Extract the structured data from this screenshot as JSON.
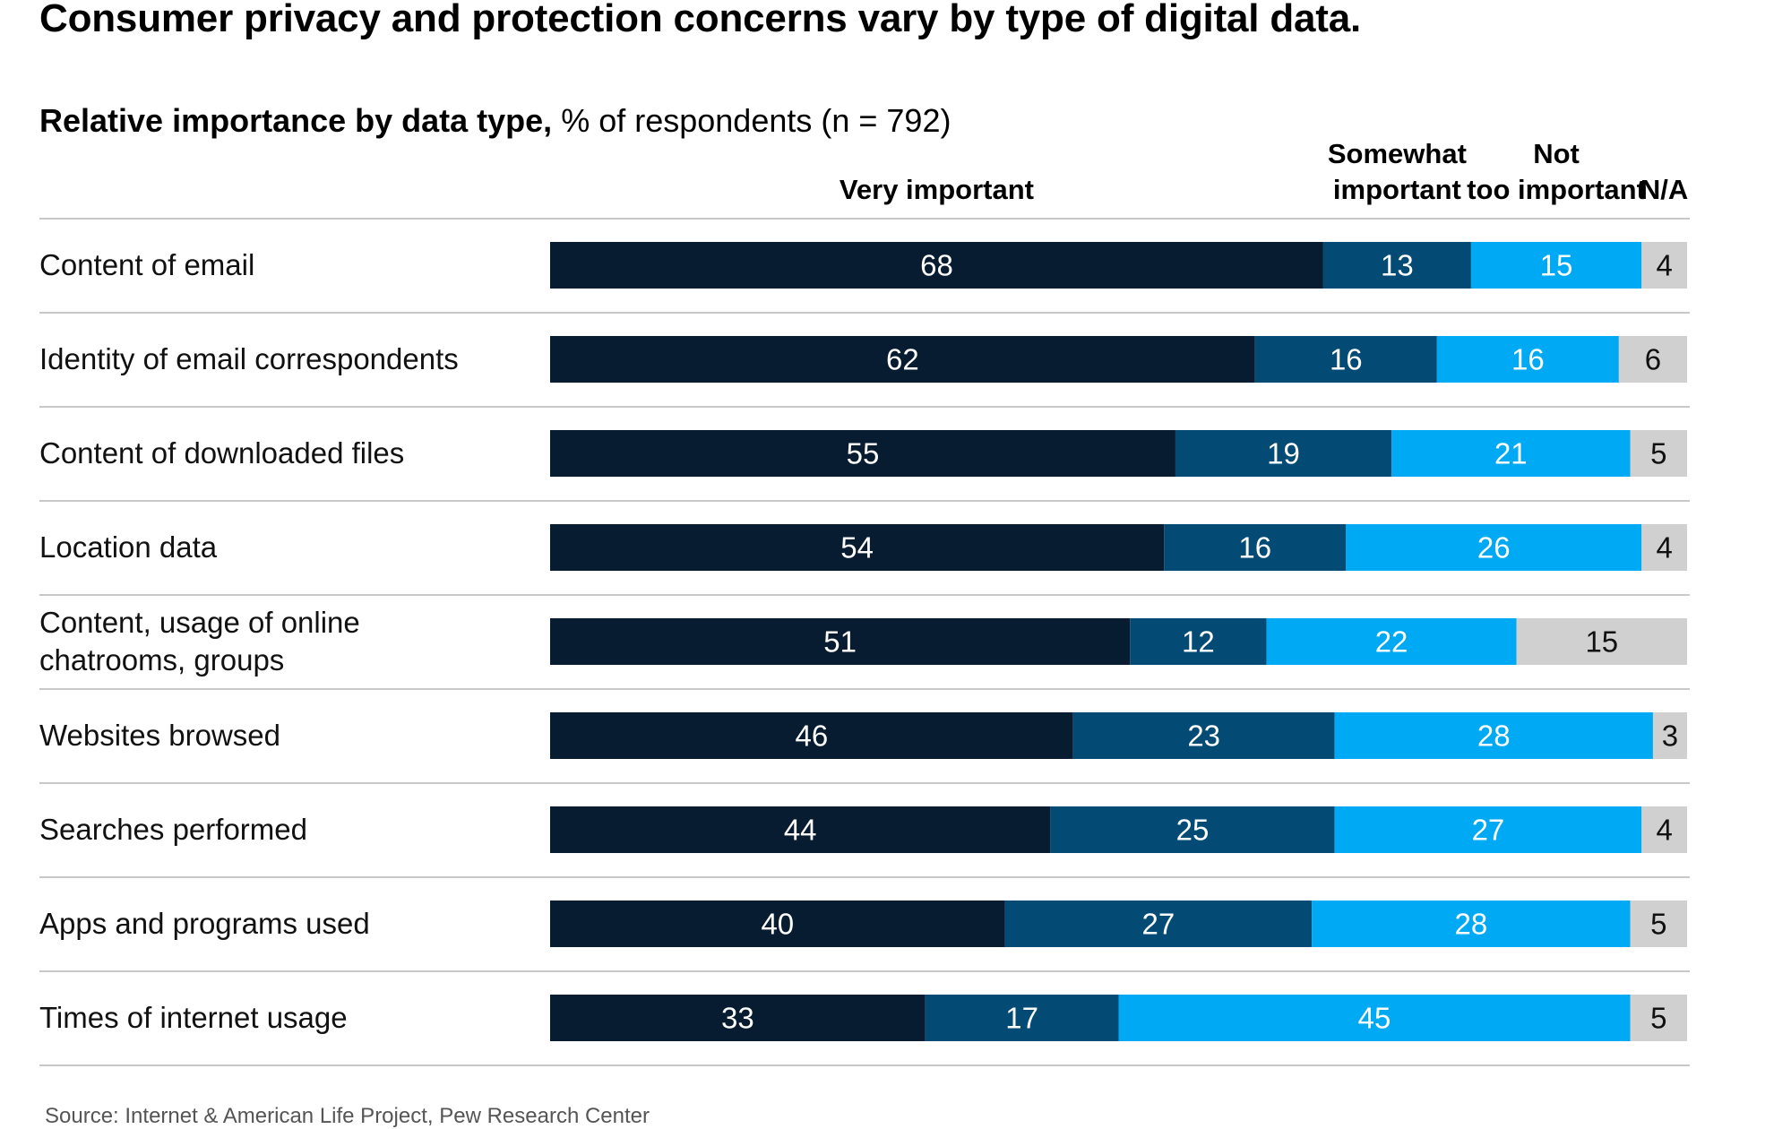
{
  "title": "Consumer privacy and protection concerns vary by type of digital data.",
  "subtitle_bold": "Relative importance by data type,",
  "subtitle_rest": " % of respondents (n = 792)",
  "source": "Source: Internet & American Life Project, Pew Research Center",
  "chart_data": {
    "type": "bar",
    "orientation": "horizontal",
    "stacked": true,
    "categories": [
      "Content of email",
      "Identity of email correspondents",
      "Content of downloaded files",
      "Location data",
      "Content, usage of online chatrooms, groups",
      "Websites browsed",
      "Searches performed",
      "Apps and programs used",
      "Times of internet usage"
    ],
    "series": [
      {
        "name": "Very important",
        "color": "#071c30",
        "values": [
          68,
          62,
          55,
          54,
          51,
          46,
          44,
          40,
          33
        ]
      },
      {
        "name": "Somewhat important",
        "color": "#034b75",
        "values": [
          13,
          16,
          19,
          16,
          12,
          23,
          25,
          27,
          17
        ]
      },
      {
        "name": "Not too important",
        "color": "#00a9f4",
        "values": [
          15,
          16,
          21,
          26,
          22,
          28,
          27,
          28,
          45
        ]
      },
      {
        "name": "N/A",
        "color": "#d0d0d0",
        "values": [
          4,
          6,
          5,
          4,
          15,
          3,
          4,
          5,
          5
        ]
      }
    ],
    "xlim": [
      0,
      100
    ],
    "grid": false,
    "legend": "column headers above bars"
  }
}
